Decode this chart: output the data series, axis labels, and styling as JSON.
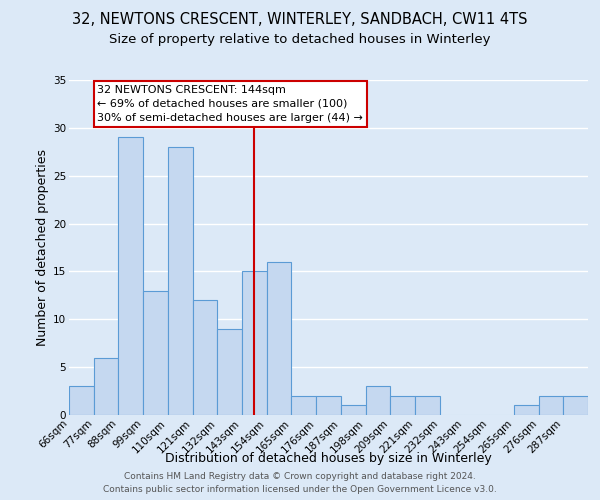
{
  "title": "32, NEWTONS CRESCENT, WINTERLEY, SANDBACH, CW11 4TS",
  "subtitle": "Size of property relative to detached houses in Winterley",
  "xlabel": "Distribution of detached houses by size in Winterley",
  "ylabel": "Number of detached properties",
  "bin_labels": [
    "66sqm",
    "77sqm",
    "88sqm",
    "99sqm",
    "110sqm",
    "121sqm",
    "132sqm",
    "143sqm",
    "154sqm",
    "165sqm",
    "176sqm",
    "187sqm",
    "198sqm",
    "209sqm",
    "221sqm",
    "232sqm",
    "243sqm",
    "254sqm",
    "265sqm",
    "276sqm",
    "287sqm"
  ],
  "bar_values": [
    3,
    6,
    29,
    13,
    28,
    12,
    9,
    15,
    16,
    2,
    2,
    1,
    3,
    2,
    2,
    0,
    0,
    0,
    1,
    2,
    2
  ],
  "bar_color": "#c5d8f0",
  "bar_edge_color": "#5b9bd5",
  "background_color": "#dce9f7",
  "grid_color": "#ffffff",
  "vline_x": 7.5,
  "vline_color": "#cc0000",
  "annotation_title": "32 NEWTONS CRESCENT: 144sqm",
  "annotation_line1": "← 69% of detached houses are smaller (100)",
  "annotation_line2": "30% of semi-detached houses are larger (44) →",
  "annotation_box_color": "#ffffff",
  "annotation_box_edge": "#cc0000",
  "ylim": [
    0,
    35
  ],
  "yticks": [
    0,
    5,
    10,
    15,
    20,
    25,
    30,
    35
  ],
  "footer1": "Contains HM Land Registry data © Crown copyright and database right 2024.",
  "footer2": "Contains public sector information licensed under the Open Government Licence v3.0.",
  "title_fontsize": 10.5,
  "subtitle_fontsize": 9.5,
  "axis_label_fontsize": 9,
  "tick_fontsize": 7.5,
  "annotation_fontsize": 8,
  "footer_fontsize": 6.5
}
